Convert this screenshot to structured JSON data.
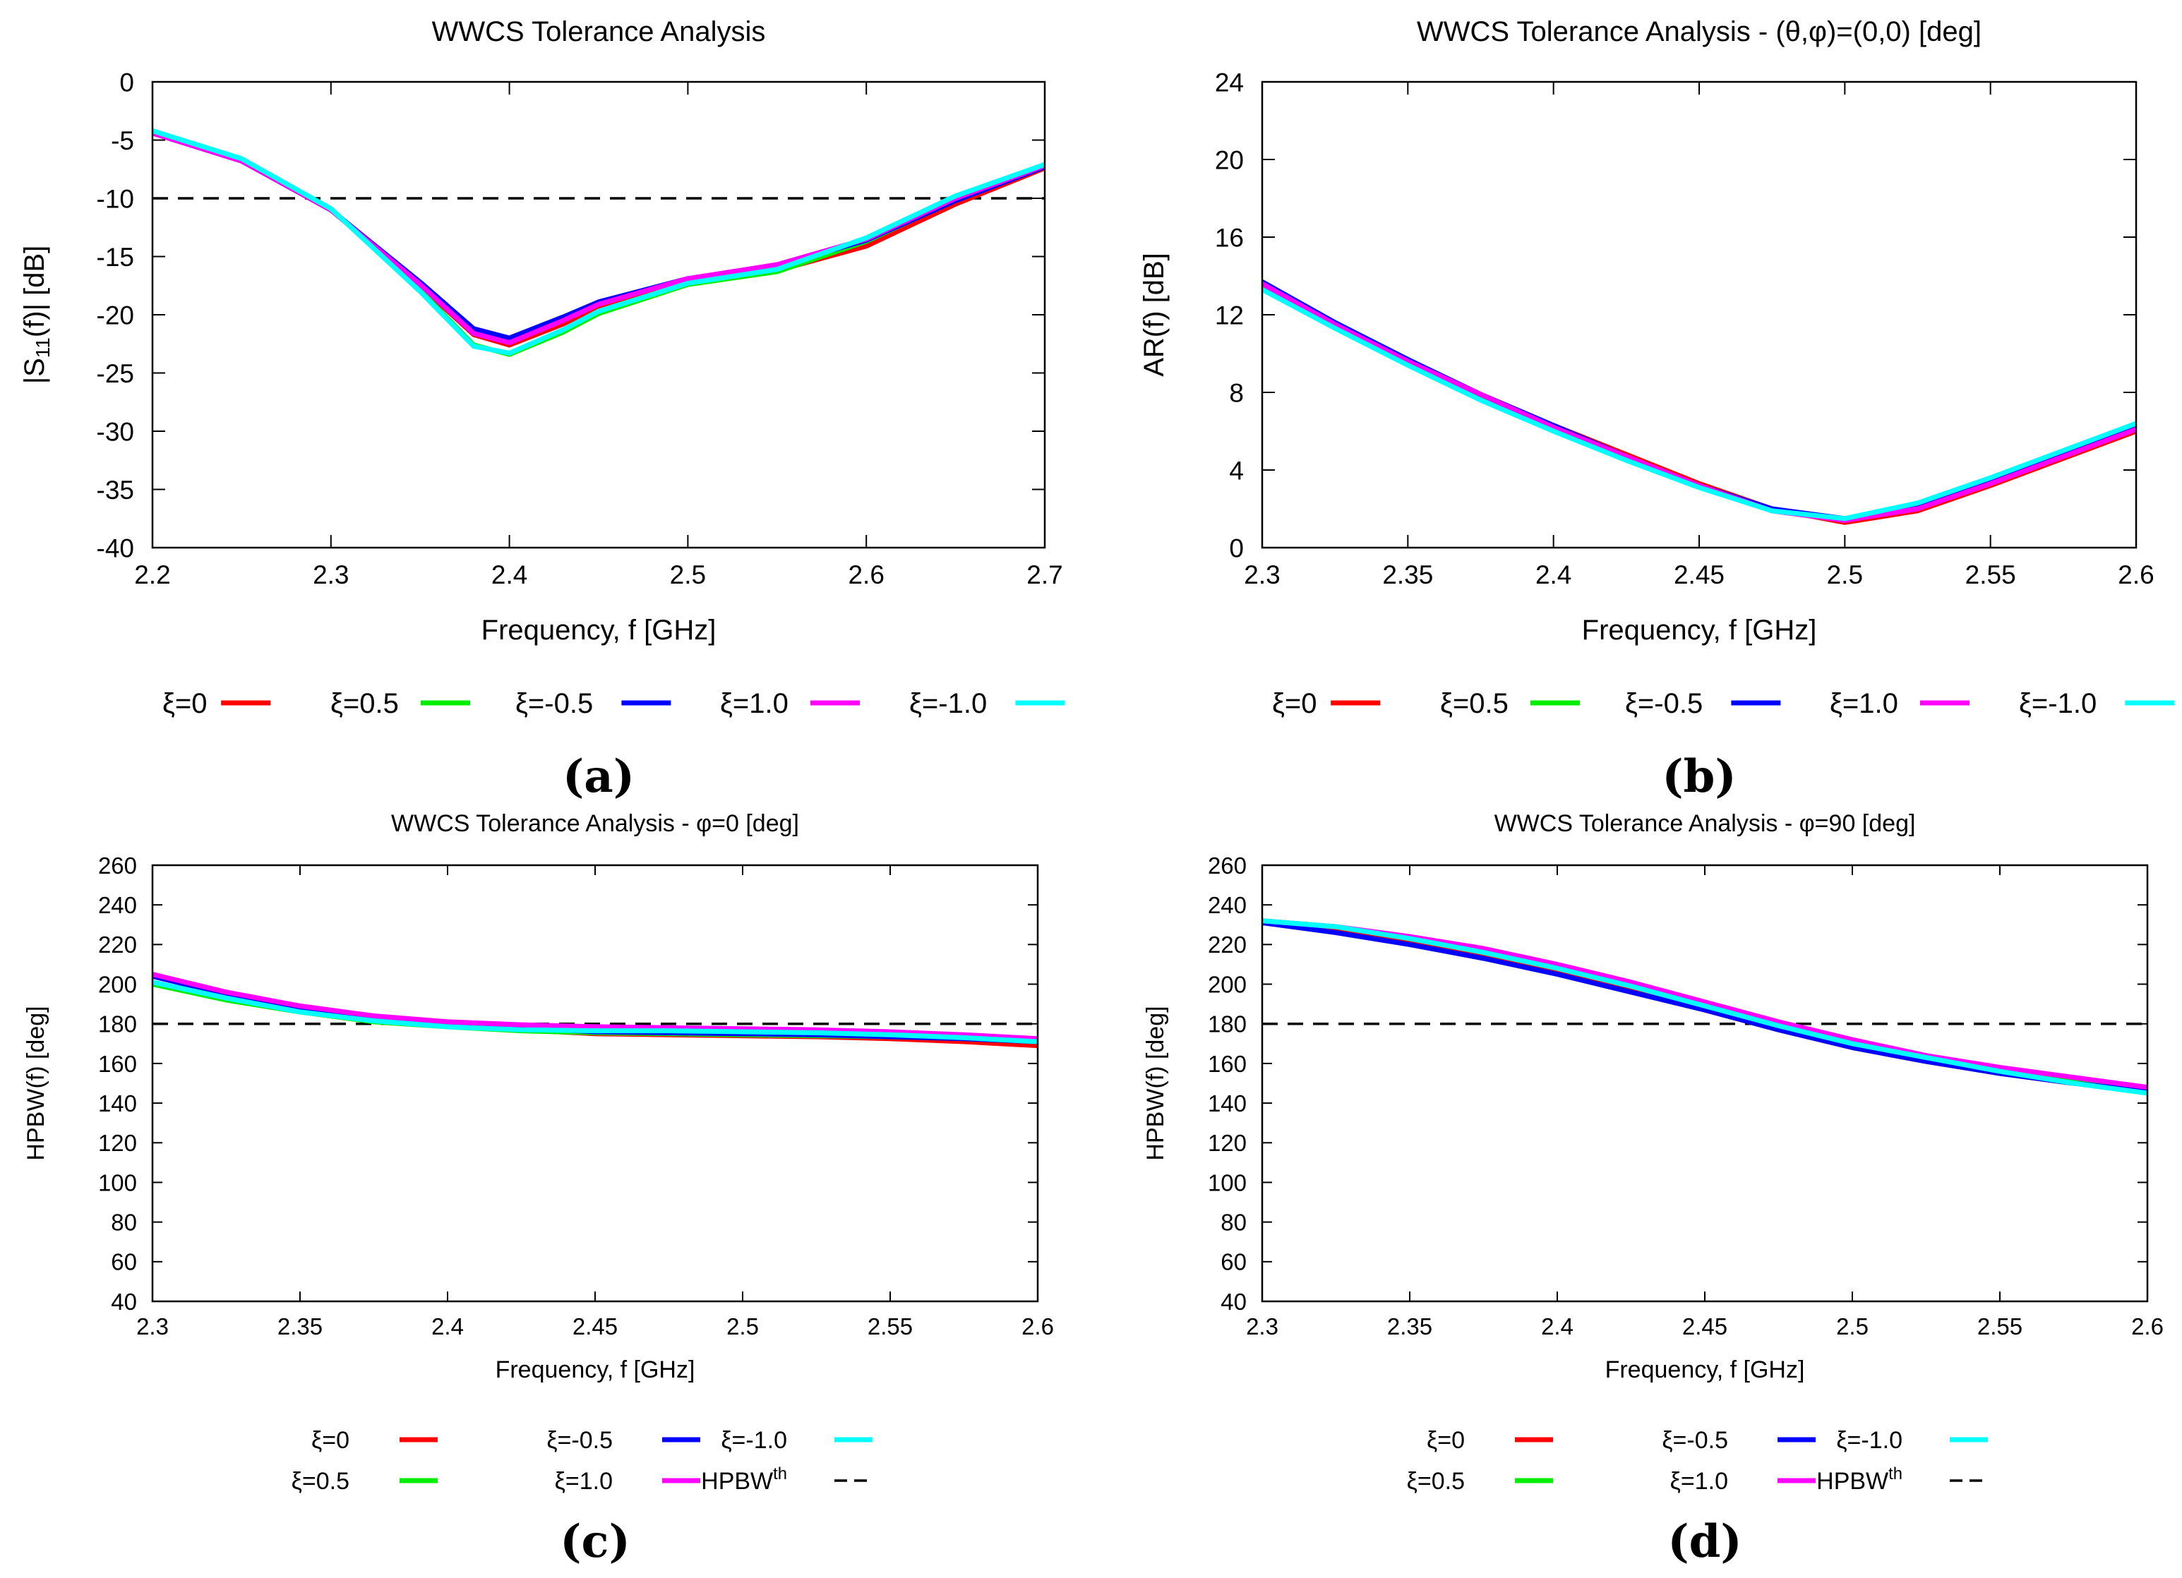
{
  "chart_data": [
    {
      "type": "line",
      "panel_label": "(a)",
      "title": "WWCS Tolerance Analysis",
      "xlabel": "Frequency, f [GHz]",
      "ylabel": "|S11(f)| [dB]",
      "ylabel_parts": {
        "pre": "|S",
        "sub": "11",
        "post": "(f)| [dB]"
      },
      "xlim": [
        2.2,
        2.7
      ],
      "ylim": [
        -40,
        0
      ],
      "xticks": [
        2.2,
        2.3,
        2.4,
        2.5,
        2.6,
        2.7
      ],
      "xtick_labels": [
        "2.2",
        "2.3",
        "2.4",
        "2.5",
        "2.6",
        "2.7"
      ],
      "yticks": [
        -40,
        -35,
        -30,
        -25,
        -20,
        -15,
        -10,
        -5,
        0
      ],
      "ytick_labels": [
        "-40",
        "-35",
        "-30",
        "-25",
        "-20",
        "-15",
        "-10",
        "-5",
        "0"
      ],
      "reference_line": {
        "y": -10,
        "color": "#000000",
        "dashed": true
      },
      "x": [
        2.2,
        2.25,
        2.3,
        2.35,
        2.38,
        2.4,
        2.43,
        2.45,
        2.5,
        2.55,
        2.6,
        2.65,
        2.7
      ],
      "series": [
        {
          "name": "ξ=0",
          "color": "#ff0000",
          "values": [
            -4.4,
            -6.8,
            -11.0,
            -17.5,
            -21.7,
            -22.6,
            -20.8,
            -19.3,
            -17.2,
            -16.2,
            -14.1,
            -10.5,
            -7.4
          ]
        },
        {
          "name": "ξ=0.5",
          "color": "#00ee00",
          "values": [
            -4.3,
            -6.7,
            -10.9,
            -17.9,
            -22.6,
            -23.4,
            -21.5,
            -19.9,
            -17.4,
            -16.3,
            -13.7,
            -10.1,
            -7.2
          ]
        },
        {
          "name": "ξ=-0.5",
          "color": "#0000ff",
          "values": [
            -4.4,
            -6.8,
            -11.0,
            -17.2,
            -21.2,
            -22.0,
            -20.2,
            -18.9,
            -16.9,
            -15.8,
            -13.6,
            -10.2,
            -7.3
          ]
        },
        {
          "name": "ξ=1.0",
          "color": "#ff00ff",
          "values": [
            -4.4,
            -6.8,
            -11.0,
            -17.4,
            -21.6,
            -22.4,
            -20.5,
            -19.1,
            -16.9,
            -15.7,
            -13.5,
            -10.0,
            -7.2
          ]
        },
        {
          "name": "ξ=-1.0",
          "color": "#00ffff",
          "values": [
            -4.2,
            -6.6,
            -10.9,
            -18.0,
            -22.7,
            -23.3,
            -21.3,
            -19.7,
            -17.3,
            -16.1,
            -13.4,
            -9.8,
            -7.1
          ]
        }
      ],
      "legend": {
        "layout": "row",
        "items": [
          "ξ=0",
          "ξ=0.5",
          "ξ=-0.5",
          "ξ=1.0",
          "ξ=-1.0"
        ]
      }
    },
    {
      "type": "line",
      "panel_label": "(b)",
      "title": "WWCS Tolerance Analysis - (θ,φ)=(0,0) [deg]",
      "xlabel": "Frequency, f [GHz]",
      "ylabel": "AR(f) [dB]",
      "xlim": [
        2.3,
        2.6
      ],
      "ylim": [
        0,
        24
      ],
      "xticks": [
        2.3,
        2.35,
        2.4,
        2.45,
        2.5,
        2.55,
        2.6
      ],
      "xtick_labels": [
        "2.3",
        "2.35",
        "2.4",
        "2.45",
        "2.5",
        "2.55",
        "2.6"
      ],
      "yticks": [
        0,
        4,
        8,
        12,
        16,
        20,
        24
      ],
      "ytick_labels": [
        "0",
        "4",
        "8",
        "12",
        "16",
        "20",
        "24"
      ],
      "x": [
        2.3,
        2.325,
        2.35,
        2.375,
        2.4,
        2.425,
        2.45,
        2.475,
        2.5,
        2.525,
        2.55,
        2.575,
        2.6
      ],
      "series": [
        {
          "name": "ξ=0",
          "color": "#ff0000",
          "values": [
            13.6,
            11.5,
            9.6,
            7.9,
            6.3,
            4.8,
            3.3,
            2.0,
            1.3,
            1.9,
            3.2,
            4.6,
            6.0
          ]
        },
        {
          "name": "ξ=0.5",
          "color": "#00ee00",
          "values": [
            13.5,
            11.4,
            9.5,
            7.8,
            6.2,
            4.7,
            3.2,
            1.9,
            1.4,
            2.2,
            3.5,
            4.9,
            6.3
          ]
        },
        {
          "name": "ξ=-0.5",
          "color": "#0000ff",
          "values": [
            13.7,
            11.6,
            9.7,
            7.9,
            6.3,
            4.7,
            3.2,
            2.0,
            1.5,
            2.1,
            3.4,
            4.8,
            6.2
          ]
        },
        {
          "name": "ξ=1.0",
          "color": "#ff00ff",
          "values": [
            13.6,
            11.5,
            9.6,
            7.9,
            6.2,
            4.7,
            3.2,
            1.9,
            1.4,
            2.0,
            3.3,
            4.7,
            6.1
          ]
        },
        {
          "name": "ξ=-1.0",
          "color": "#00ffff",
          "values": [
            13.3,
            11.3,
            9.4,
            7.6,
            6.0,
            4.5,
            3.1,
            1.9,
            1.5,
            2.3,
            3.6,
            5.0,
            6.4
          ]
        }
      ],
      "legend": {
        "layout": "row",
        "items": [
          "ξ=0",
          "ξ=0.5",
          "ξ=-0.5",
          "ξ=1.0",
          "ξ=-1.0"
        ]
      }
    },
    {
      "type": "line",
      "panel_label": "(c)",
      "title": "WWCS Tolerance Analysis - φ=0 [deg]",
      "xlabel": "Frequency, f [GHz]",
      "ylabel": "HPBW(f) [deg]",
      "xlim": [
        2.3,
        2.6
      ],
      "ylim": [
        40,
        260
      ],
      "xticks": [
        2.3,
        2.35,
        2.4,
        2.45,
        2.5,
        2.55,
        2.6
      ],
      "xtick_labels": [
        "2.3",
        "2.35",
        "2.4",
        "2.45",
        "2.5",
        "2.55",
        "2.6"
      ],
      "yticks": [
        40,
        60,
        80,
        100,
        120,
        140,
        160,
        180,
        200,
        220,
        240,
        260
      ],
      "ytick_labels": [
        "40",
        "60",
        "80",
        "100",
        "120",
        "140",
        "160",
        "180",
        "200",
        "220",
        "240",
        "260"
      ],
      "reference_line": {
        "y": 180,
        "color": "#000000",
        "dashed": true
      },
      "x": [
        2.3,
        2.325,
        2.35,
        2.375,
        2.4,
        2.425,
        2.45,
        2.475,
        2.5,
        2.525,
        2.55,
        2.575,
        2.6
      ],
      "series": [
        {
          "name": "ξ=0",
          "color": "#ff0000",
          "values": [
            204,
            195,
            188,
            183,
            180,
            177,
            175,
            174.5,
            174,
            173.5,
            172.5,
            171,
            169
          ]
        },
        {
          "name": "ξ=0.5",
          "color": "#00ee00",
          "values": [
            200,
            192,
            186,
            181,
            178.5,
            176.5,
            175.5,
            175,
            174.5,
            174,
            173.5,
            172.5,
            171
          ]
        },
        {
          "name": "ξ=-0.5",
          "color": "#0000ff",
          "values": [
            204,
            195,
            188,
            183,
            180,
            178,
            176,
            175.5,
            175,
            174.5,
            173.5,
            172.5,
            171
          ]
        },
        {
          "name": "ξ=1.0",
          "color": "#ff00ff",
          "values": [
            205,
            196,
            189,
            184,
            181,
            179.5,
            178.5,
            178,
            177.5,
            177,
            176,
            174.5,
            172.5
          ]
        },
        {
          "name": "ξ=-1.0",
          "color": "#00ffff",
          "values": [
            201,
            193,
            186,
            181.5,
            178.5,
            177,
            176.5,
            176.5,
            176,
            175.5,
            174.5,
            173,
            171
          ]
        }
      ],
      "legend": {
        "layout": "grid",
        "rows": [
          [
            "ξ=0",
            "ξ=-0.5",
            "ξ=-1.0"
          ],
          [
            "ξ=0.5",
            "ξ=1.0",
            "HPBW"
          ]
        ],
        "threshold_label": "HPBW",
        "threshold_sup": "th"
      }
    },
    {
      "type": "line",
      "panel_label": "(d)",
      "title": "WWCS Tolerance Analysis - φ=90 [deg]",
      "xlabel": "Frequency, f [GHz]",
      "ylabel": "HPBW(f) [deg]",
      "xlim": [
        2.3,
        2.6
      ],
      "ylim": [
        40,
        260
      ],
      "xticks": [
        2.3,
        2.35,
        2.4,
        2.45,
        2.5,
        2.55,
        2.6
      ],
      "xtick_labels": [
        "2.3",
        "2.35",
        "2.4",
        "2.45",
        "2.5",
        "2.55",
        "2.6"
      ],
      "yticks": [
        40,
        60,
        80,
        100,
        120,
        140,
        160,
        180,
        200,
        220,
        240,
        260
      ],
      "ytick_labels": [
        "40",
        "60",
        "80",
        "100",
        "120",
        "140",
        "160",
        "180",
        "200",
        "220",
        "240",
        "260"
      ],
      "reference_line": {
        "y": 180,
        "color": "#000000",
        "dashed": true
      },
      "x": [
        2.3,
        2.325,
        2.35,
        2.375,
        2.4,
        2.425,
        2.45,
        2.475,
        2.5,
        2.525,
        2.55,
        2.575,
        2.6
      ],
      "series": [
        {
          "name": "ξ=0",
          "color": "#ff0000",
          "values": [
            231,
            227,
            221,
            214,
            206,
            197,
            187,
            177,
            168,
            161,
            155,
            150,
            146
          ]
        },
        {
          "name": "ξ=0.5",
          "color": "#00ee00",
          "values": [
            232,
            229,
            223,
            216,
            208,
            199,
            189,
            179,
            170,
            162,
            156,
            151,
            146
          ]
        },
        {
          "name": "ξ=-0.5",
          "color": "#0000ff",
          "values": [
            231,
            226,
            220,
            213,
            205,
            196,
            187,
            177,
            168,
            161,
            155,
            150,
            146
          ]
        },
        {
          "name": "ξ=1.0",
          "color": "#ff00ff",
          "values": [
            232,
            229,
            224,
            218,
            210,
            201,
            191,
            181,
            172,
            164,
            158,
            153,
            148
          ]
        },
        {
          "name": "ξ=-1.0",
          "color": "#00ffff",
          "values": [
            232,
            229,
            223,
            216,
            208,
            199,
            189,
            179,
            170,
            163,
            156,
            150,
            145
          ]
        }
      ],
      "legend": {
        "layout": "grid",
        "rows": [
          [
            "ξ=0",
            "ξ=-0.5",
            "ξ=-1.0"
          ],
          [
            "ξ=0.5",
            "ξ=1.0",
            "HPBW"
          ]
        ],
        "threshold_label": "HPBW",
        "threshold_sup": "th"
      }
    }
  ]
}
